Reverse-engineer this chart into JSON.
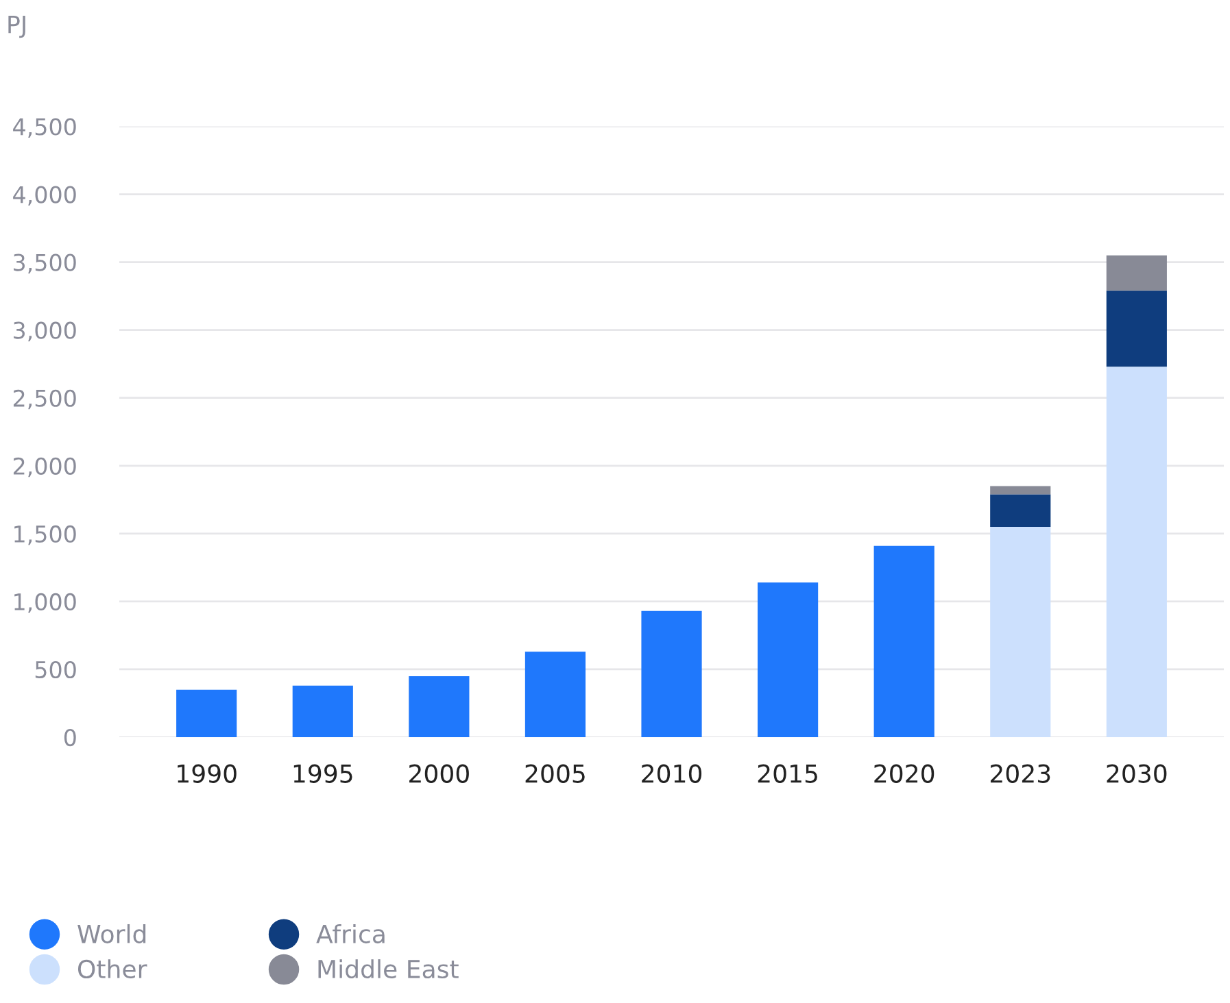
{
  "chart_data": {
    "type": "bar",
    "ylabel": "PJ",
    "stacked": true,
    "categories": [
      "1990",
      "1995",
      "2000",
      "2005",
      "2010",
      "2015",
      "2020",
      "2023",
      "2030"
    ],
    "series": [
      {
        "name": "World",
        "color": "#1f78fc",
        "values": [
          350,
          380,
          450,
          630,
          930,
          1140,
          1410,
          null,
          null
        ]
      },
      {
        "name": "Other",
        "color": "#cce0fd",
        "values": [
          null,
          null,
          null,
          null,
          null,
          null,
          null,
          1550,
          2730
        ]
      },
      {
        "name": "Africa",
        "color": "#0f3d7e",
        "values": [
          null,
          null,
          null,
          null,
          null,
          null,
          null,
          240,
          560
        ]
      },
      {
        "name": "Middle East",
        "color": "#888a96",
        "values": [
          null,
          null,
          null,
          null,
          null,
          null,
          null,
          60,
          260
        ]
      }
    ],
    "ylim": [
      0,
      4500
    ],
    "yticks": [
      {
        "value": 0,
        "label": "0"
      },
      {
        "value": 500,
        "label": "500"
      },
      {
        "value": 1000,
        "label": "1,000"
      },
      {
        "value": 1500,
        "label": "1,500"
      },
      {
        "value": 2000,
        "label": "2,000"
      },
      {
        "value": 2500,
        "label": "2,500"
      },
      {
        "value": 3000,
        "label": "3,000"
      },
      {
        "value": 3500,
        "label": "3,500"
      },
      {
        "value": 4000,
        "label": "4,000"
      },
      {
        "value": 4500,
        "label": "4,500"
      }
    ],
    "grid": "y",
    "legend": "bottom left"
  }
}
